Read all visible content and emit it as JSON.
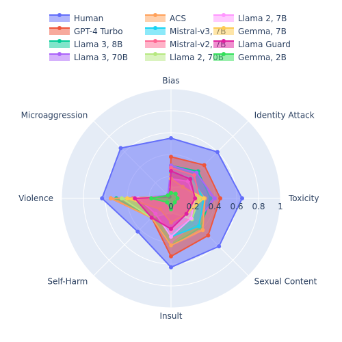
{
  "chart_data": {
    "type": "radar",
    "axes": [
      "Bias",
      "Identity Attack",
      "Toxicity",
      "Sexual Content",
      "Insult",
      "Self-Harm",
      "Violence",
      "Microaggression"
    ],
    "radial_range": [
      0,
      1
    ],
    "radial_ticks": [
      "0",
      "0.2",
      "0.4",
      "0.6",
      "0.8",
      "1"
    ],
    "radial_tick_values": [
      0,
      0.2,
      0.4,
      0.6,
      0.8,
      1
    ],
    "grid": true,
    "legend_position": "top",
    "series": [
      {
        "name": "Human",
        "color": "#636efa",
        "values": [
          0.55,
          0.6,
          0.65,
          0.62,
          0.63,
          0.43,
          0.63,
          0.65
        ]
      },
      {
        "name": "GPT-4 Turbo",
        "color": "#ef553b",
        "values": [
          0.38,
          0.43,
          0.45,
          0.48,
          0.53,
          0.25,
          0.55,
          0.02
        ]
      },
      {
        "name": "Llama 3, 8B",
        "color": "#00cc96",
        "values": [
          0.3,
          0.35,
          0.36,
          0.38,
          0.43,
          0.25,
          0.5,
          0.02
        ]
      },
      {
        "name": "Llama 3, 70B",
        "color": "#ab63fa",
        "values": [
          0.3,
          0.33,
          0.4,
          0.32,
          0.4,
          0.1,
          0.3,
          0.04
        ]
      },
      {
        "name": "ACS",
        "color": "#ffa15a",
        "values": [
          0.22,
          0.25,
          0.31,
          0.41,
          0.43,
          0.25,
          0.55,
          0.02
        ]
      },
      {
        "name": "Mistral-v3, 7B",
        "color": "#19d3f3",
        "values": [
          0.24,
          0.26,
          0.3,
          0.36,
          0.35,
          0.2,
          0.35,
          0.02
        ]
      },
      {
        "name": "Mistral-v2, 7B",
        "color": "#ff6692",
        "values": [
          0.28,
          0.3,
          0.26,
          0.25,
          0.3,
          0.2,
          0.35,
          0.02
        ]
      },
      {
        "name": "Llama 2, 70B",
        "color": "#b6e880",
        "values": [
          0.1,
          0.15,
          0.26,
          0.27,
          0.13,
          0.25,
          0.45,
          0.01
        ]
      },
      {
        "name": "Llama 2, 7B",
        "color": "#ff97ff",
        "values": [
          0.18,
          0.22,
          0.22,
          0.26,
          0.35,
          0.2,
          0.3,
          0.02
        ]
      },
      {
        "name": "Gemma, 7B",
        "color": "#fecb52",
        "values": [
          0.18,
          0.15,
          0.3,
          0.2,
          0.22,
          0.14,
          0.4,
          0.02
        ]
      },
      {
        "name": "Llama Guard",
        "color": "#e020a0",
        "values": [
          0.25,
          0.25,
          0.22,
          0.2,
          0.28,
          0.25,
          0.33,
          0.02
        ]
      },
      {
        "name": "Gemma, 2B",
        "color": "#33e05a",
        "values": [
          0.05,
          0.06,
          0.06,
          0.05,
          0.1,
          0.05,
          0.18,
          0.04
        ]
      }
    ],
    "legend_order": [
      "Human",
      "GPT-4 Turbo",
      "Llama 3, 8B",
      "Llama 3, 70B",
      "ACS",
      "Mistral-v3, 7B",
      "Mistral-v2, 7B",
      "Llama 2, 70B",
      "Llama 2, 7B",
      "Gemma, 7B",
      "Llama Guard",
      "Gemma, 2B"
    ]
  }
}
